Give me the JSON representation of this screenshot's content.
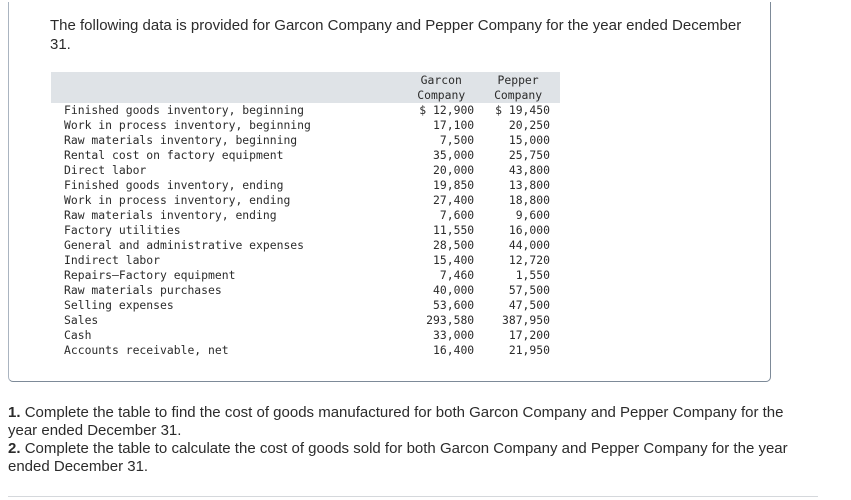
{
  "intro": "The following data is provided for Garcon Company and Pepper Company for the year ended December 31.",
  "table": {
    "header": {
      "garcon_line1": "Garcon",
      "garcon_line2": "Company",
      "pepper_line1": "Pepper",
      "pepper_line2": "Company"
    },
    "rows": [
      {
        "label": "Finished goods inventory, beginning",
        "garcon": "$ 12,900",
        "pepper": "$ 19,450"
      },
      {
        "label": "Work in process inventory, beginning",
        "garcon": "17,100",
        "pepper": "20,250"
      },
      {
        "label": "Raw materials inventory, beginning",
        "garcon": "7,500",
        "pepper": "15,000"
      },
      {
        "label": "Rental cost on factory equipment",
        "garcon": "35,000",
        "pepper": "25,750"
      },
      {
        "label": "Direct labor",
        "garcon": "20,000",
        "pepper": "43,800"
      },
      {
        "label": "Finished goods inventory, ending",
        "garcon": "19,850",
        "pepper": "13,800"
      },
      {
        "label": "Work in process inventory, ending",
        "garcon": "27,400",
        "pepper": "18,800"
      },
      {
        "label": "Raw materials inventory, ending",
        "garcon": "7,600",
        "pepper": "9,600"
      },
      {
        "label": "Factory utilities",
        "garcon": "11,550",
        "pepper": "16,000"
      },
      {
        "label": "General and administrative expenses",
        "garcon": "28,500",
        "pepper": "44,000"
      },
      {
        "label": "Indirect labor",
        "garcon": "15,400",
        "pepper": "12,720"
      },
      {
        "label": "Repairs—Factory equipment",
        "garcon": "7,460",
        "pepper": "1,550"
      },
      {
        "label": "Raw materials purchases",
        "garcon": "40,000",
        "pepper": "57,500"
      },
      {
        "label": "Selling expenses",
        "garcon": "53,600",
        "pepper": "47,500"
      },
      {
        "label": "Sales",
        "garcon": "293,580",
        "pepper": "387,950"
      },
      {
        "label": "Cash",
        "garcon": "33,000",
        "pepper": "17,200"
      },
      {
        "label": "Accounts receivable, net",
        "garcon": "16,400",
        "pepper": "21,950"
      }
    ]
  },
  "questions": [
    {
      "number": "1.",
      "text": "Complete the table to find the cost of goods manufactured for both Garcon Company and Pepper Company for the year ended December 31."
    },
    {
      "number": "2.",
      "text": "Complete the table to calculate the cost of goods sold for both Garcon Company and Pepper Company for the year ended December 31."
    }
  ]
}
